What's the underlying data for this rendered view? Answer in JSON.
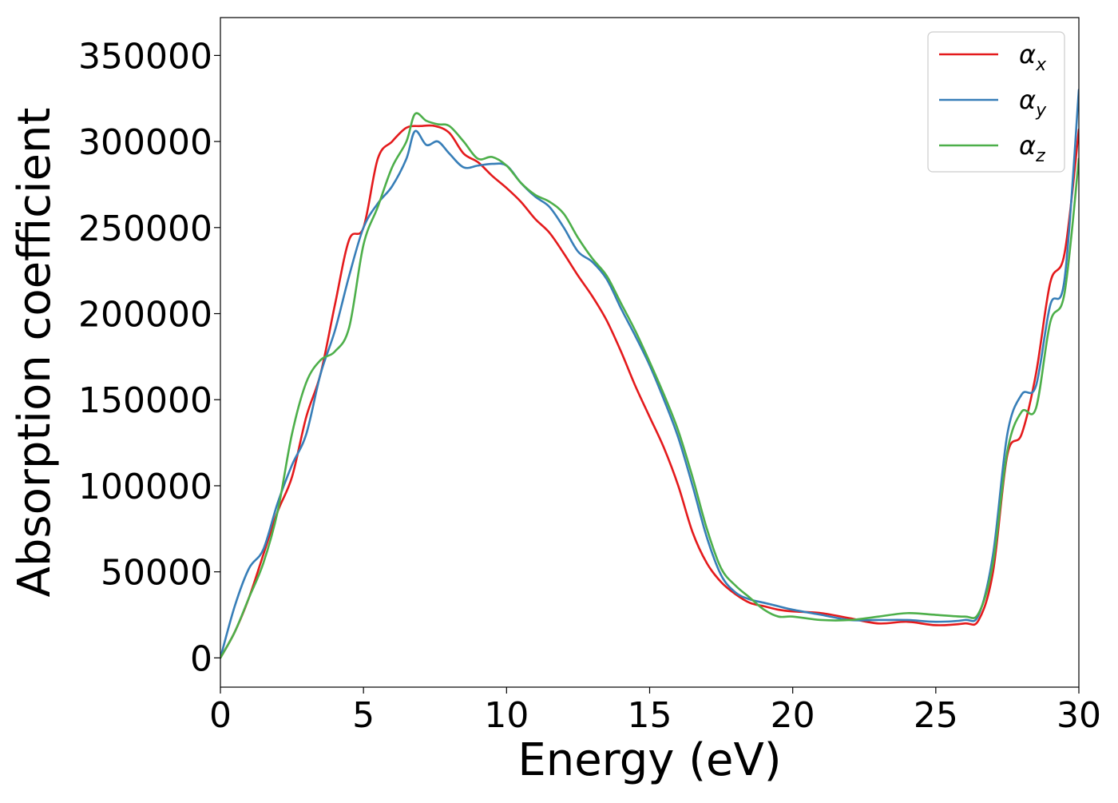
{
  "chart_data": {
    "type": "line",
    "title": "",
    "xlabel": "Energy (eV)",
    "ylabel": "Absorption coefficient",
    "xlim": [
      0,
      30
    ],
    "ylim": [
      -17000,
      372000
    ],
    "xticks": [
      0,
      5,
      10,
      15,
      20,
      25,
      30
    ],
    "xtick_labels": [
      "0",
      "5",
      "10",
      "15",
      "20",
      "25",
      "30"
    ],
    "yticks": [
      0,
      50000,
      100000,
      150000,
      200000,
      250000,
      300000,
      350000
    ],
    "ytick_labels": [
      "0",
      "50000",
      "100000",
      "150000",
      "200000",
      "250000",
      "300000",
      "350000"
    ],
    "grid": false,
    "legend_position": "top-right",
    "series": [
      {
        "name": "α",
        "subscript": "x",
        "color": "#e41a1c",
        "x": [
          0,
          0.5,
          1.0,
          1.5,
          2.0,
          2.5,
          3.0,
          3.5,
          4.0,
          4.5,
          5.0,
          5.5,
          6.0,
          6.5,
          7.0,
          7.5,
          8.0,
          8.5,
          9.0,
          9.5,
          10.0,
          10.5,
          11.0,
          11.5,
          12.0,
          12.5,
          13.0,
          13.5,
          14.0,
          14.5,
          15.0,
          15.5,
          16.0,
          16.5,
          17.0,
          17.5,
          18.0,
          18.5,
          19.0,
          19.5,
          20.0,
          21.0,
          22.0,
          23.0,
          24.0,
          25.0,
          26.0,
          26.5,
          27.0,
          27.5,
          28.0,
          28.5,
          29.0,
          29.5,
          30.0
        ],
        "y": [
          0,
          15000,
          35000,
          60000,
          85000,
          105000,
          140000,
          165000,
          205000,
          243000,
          250000,
          290000,
          300000,
          308000,
          309000,
          309000,
          305000,
          293000,
          288000,
          280000,
          273000,
          265000,
          255000,
          247000,
          235000,
          222000,
          210000,
          196000,
          178000,
          158000,
          140000,
          122000,
          100000,
          73000,
          55000,
          44000,
          37000,
          32000,
          30000,
          28000,
          27000,
          26000,
          23000,
          20000,
          21000,
          19000,
          20000,
          22000,
          50000,
          118000,
          130000,
          165000,
          218000,
          235000,
          307000
        ]
      },
      {
        "name": "α",
        "subscript": "y",
        "color": "#377eb8",
        "x": [
          0,
          0.5,
          1.0,
          1.5,
          2.0,
          2.5,
          3.0,
          3.5,
          4.0,
          4.5,
          5.0,
          5.5,
          6.0,
          6.5,
          6.8,
          7.2,
          7.6,
          8.0,
          8.5,
          9.0,
          9.5,
          10.0,
          10.5,
          11.0,
          11.5,
          12.0,
          12.5,
          13.0,
          13.5,
          14.0,
          14.5,
          15.0,
          15.5,
          16.0,
          16.5,
          17.0,
          17.5,
          18.0,
          18.5,
          19.0,
          19.5,
          20.0,
          21.0,
          22.0,
          23.0,
          24.0,
          25.0,
          26.0,
          26.5,
          27.0,
          27.5,
          28.0,
          28.5,
          29.0,
          29.5,
          30.0
        ],
        "y": [
          0,
          30000,
          52000,
          63000,
          90000,
          112000,
          130000,
          165000,
          190000,
          222000,
          250000,
          264000,
          274000,
          290000,
          306000,
          298000,
          300000,
          293000,
          285000,
          286000,
          287000,
          286000,
          276000,
          268000,
          262000,
          250000,
          236000,
          230000,
          220000,
          203000,
          187000,
          170000,
          150000,
          128000,
          100000,
          70000,
          48000,
          38000,
          34000,
          32000,
          30000,
          28000,
          25000,
          22000,
          22000,
          22000,
          21000,
          22000,
          25000,
          60000,
          130000,
          153000,
          158000,
          205000,
          220000,
          330000
        ]
      },
      {
        "name": "α",
        "subscript": "z",
        "color": "#4daf4a",
        "x": [
          0,
          0.5,
          1.0,
          1.5,
          2.0,
          2.5,
          3.0,
          3.5,
          4.0,
          4.5,
          5.0,
          5.5,
          6.0,
          6.5,
          6.8,
          7.2,
          7.6,
          8.0,
          8.5,
          9.0,
          9.5,
          10.0,
          10.5,
          11.0,
          11.5,
          12.0,
          12.5,
          13.0,
          13.5,
          14.0,
          14.5,
          15.0,
          15.5,
          16.0,
          16.5,
          17.0,
          17.5,
          18.0,
          18.5,
          19.0,
          19.5,
          20.0,
          21.0,
          22.0,
          23.0,
          24.0,
          25.0,
          26.0,
          26.5,
          27.0,
          27.5,
          28.0,
          28.5,
          29.0,
          29.5,
          30.0
        ],
        "y": [
          0,
          15000,
          35000,
          55000,
          85000,
          130000,
          160000,
          173000,
          178000,
          192000,
          240000,
          262000,
          285000,
          300000,
          316000,
          312000,
          310000,
          309000,
          300000,
          290000,
          291000,
          286000,
          276000,
          269000,
          265000,
          258000,
          244000,
          232000,
          222000,
          206000,
          190000,
          172000,
          153000,
          132000,
          105000,
          75000,
          52000,
          42000,
          35000,
          28000,
          24000,
          24000,
          22000,
          22000,
          24000,
          26000,
          25000,
          24000,
          26000,
          55000,
          120000,
          143000,
          145000,
          195000,
          212000,
          290000
        ]
      }
    ]
  }
}
